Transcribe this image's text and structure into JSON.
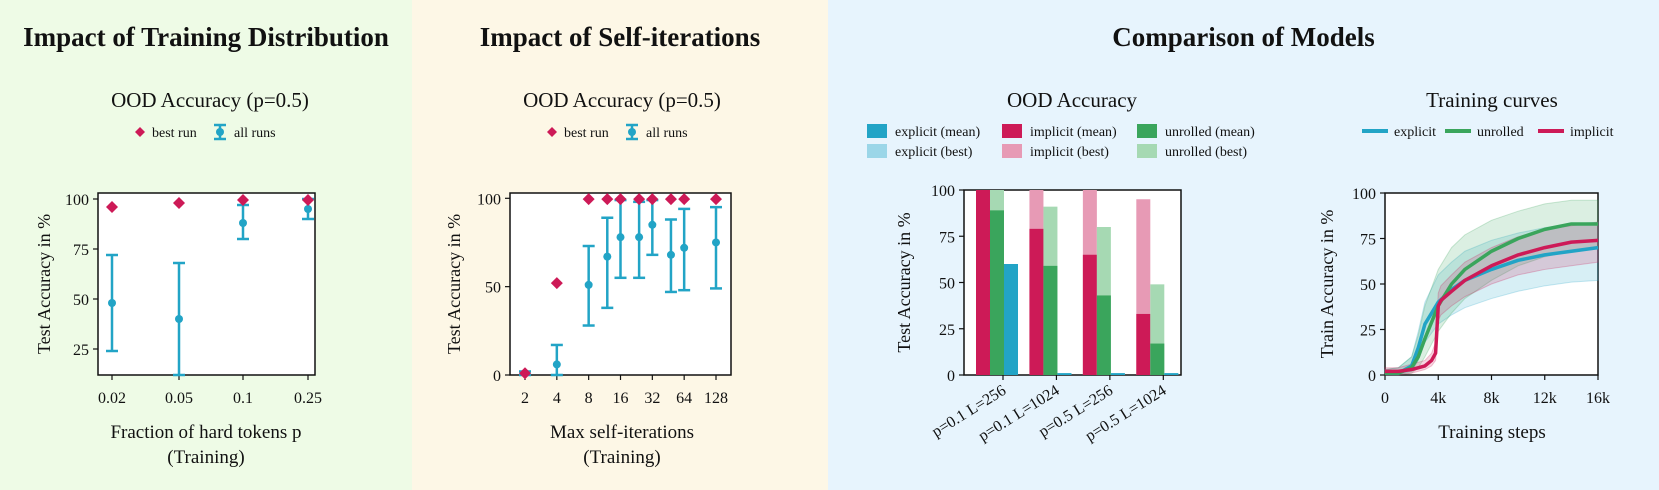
{
  "panels": {
    "p1_title": "Impact of Training Distribution",
    "p2_title": "Impact of Self-iterations",
    "p3_title": "Comparison of Models"
  },
  "chart_data": [
    {
      "id": "training_distribution",
      "type": "scatter",
      "title": "OOD Accuracy (p=0.5)",
      "legend": [
        "best run",
        "all runs"
      ],
      "categories": [
        "0.02",
        "0.05",
        "0.1",
        "0.25"
      ],
      "best": [
        96,
        98,
        99.5,
        99.5
      ],
      "mean": [
        48,
        40,
        88,
        95
      ],
      "err_low": [
        24,
        12,
        80,
        90
      ],
      "err_high": [
        72,
        68,
        97,
        100
      ],
      "xlabel": "Fraction of hard tokens p",
      "xlabel2": "(Training)",
      "ylabel": "Test Accuracy in %",
      "yticks": [
        25,
        50,
        75,
        100
      ],
      "ylim": [
        12,
        103
      ]
    },
    {
      "id": "self_iterations",
      "type": "scatter",
      "title": "OOD Accuracy (p=0.5)",
      "legend": [
        "best run",
        "all runs"
      ],
      "x": [
        2,
        4,
        8,
        12,
        16,
        24,
        32,
        48,
        64,
        128
      ],
      "best": [
        1,
        52,
        99.5,
        99.5,
        99.5,
        99.5,
        99.5,
        99.5,
        99.5,
        99.5
      ],
      "mean": [
        1,
        6,
        51,
        67,
        78,
        78,
        85,
        68,
        72,
        75
      ],
      "err_low": [
        0,
        0,
        28,
        38,
        55,
        55,
        68,
        47,
        48,
        49
      ],
      "err_high": [
        2,
        17,
        73,
        89,
        99,
        98,
        99,
        88,
        94,
        95
      ],
      "xticks": [
        "2",
        "4",
        "8",
        "16",
        "32",
        "64",
        "128"
      ],
      "xlabel": "Max self-iterations",
      "xlabel2": "(Training)",
      "ylabel": "Test Accuracy in %",
      "yticks": [
        0,
        50,
        100
      ],
      "ylim": [
        0,
        103
      ]
    },
    {
      "id": "comparison_bars",
      "type": "bar",
      "title": "OOD Accuracy",
      "categories": [
        "p=0.1 L=256",
        "p=0.1 L=1024",
        "p=0.5 L=256",
        "p=0.5 L=1024"
      ],
      "series": [
        {
          "name": "explicit (mean)",
          "values": [
            60,
            1,
            1,
            1
          ],
          "color": "#22a4c6"
        },
        {
          "name": "explicit (best)",
          "values": [
            60,
            1,
            1,
            1
          ],
          "color": "#9bd6e8"
        },
        {
          "name": "implicit (mean)",
          "values": [
            100,
            79,
            65,
            33
          ],
          "color": "#cd1a57"
        },
        {
          "name": "implicit (best)",
          "values": [
            100,
            100,
            100,
            95
          ],
          "color": "#e79ab5"
        },
        {
          "name": "unrolled (mean)",
          "values": [
            89,
            59,
            43,
            17
          ],
          "color": "#3aa55c"
        },
        {
          "name": "unrolled (best)",
          "values": [
            100,
            91,
            80,
            49
          ],
          "color": "#a6d9b3"
        }
      ],
      "ylabel": "Test Accuracy in %",
      "yticks": [
        0,
        25,
        50,
        75,
        100
      ],
      "ylim": [
        0,
        100
      ]
    },
    {
      "id": "training_curves",
      "type": "line",
      "title": "Training curves",
      "legend": [
        "explicit",
        "unrolled",
        "implicit"
      ],
      "xlabel": "Training steps",
      "ylabel": "Train Accuracy in %",
      "xticks": [
        "0",
        "4k",
        "8k",
        "12k",
        "16k"
      ],
      "xlim": [
        0,
        16000
      ],
      "ylim": [
        0,
        100
      ],
      "yticks": [
        0,
        25,
        50,
        75,
        100
      ],
      "series": [
        {
          "name": "explicit",
          "color": "#22a4c6",
          "x": [
            0,
            1000,
            2000,
            2500,
            3000,
            4000,
            5000,
            6000,
            8000,
            10000,
            12000,
            14000,
            16000
          ],
          "y": [
            1,
            1,
            5,
            15,
            28,
            40,
            47,
            52,
            58,
            63,
            66,
            68,
            70
          ],
          "lo": [
            0,
            0,
            2,
            8,
            18,
            28,
            33,
            37,
            42,
            46,
            49,
            51,
            52
          ],
          "hi": [
            3,
            4,
            10,
            24,
            40,
            55,
            62,
            68,
            74,
            78,
            81,
            83,
            84
          ]
        },
        {
          "name": "unrolled",
          "color": "#3aa55c",
          "x": [
            0,
            1000,
            2000,
            2500,
            3000,
            4000,
            5000,
            6000,
            8000,
            10000,
            12000,
            14000,
            16000
          ],
          "y": [
            1,
            1,
            4,
            10,
            20,
            38,
            50,
            58,
            68,
            75,
            80,
            83,
            83
          ],
          "lo": [
            0,
            0,
            1,
            4,
            10,
            24,
            34,
            42,
            52,
            60,
            65,
            68,
            70
          ],
          "hi": [
            3,
            4,
            10,
            22,
            38,
            58,
            70,
            77,
            85,
            90,
            94,
            96,
            96
          ]
        },
        {
          "name": "implicit",
          "color": "#cd1a57",
          "x": [
            0,
            1000,
            2000,
            3000,
            3500,
            3800,
            4000,
            4200,
            5000,
            6000,
            8000,
            10000,
            12000,
            14000,
            16000
          ],
          "y": [
            2,
            2,
            3,
            5,
            8,
            12,
            38,
            41,
            46,
            52,
            60,
            66,
            70,
            73,
            74
          ],
          "lo": [
            0,
            0,
            1,
            3,
            5,
            8,
            30,
            33,
            38,
            43,
            50,
            55,
            58,
            60,
            62
          ],
          "hi": [
            4,
            4,
            6,
            8,
            12,
            18,
            45,
            49,
            55,
            62,
            70,
            76,
            80,
            82,
            84
          ]
        }
      ]
    }
  ]
}
